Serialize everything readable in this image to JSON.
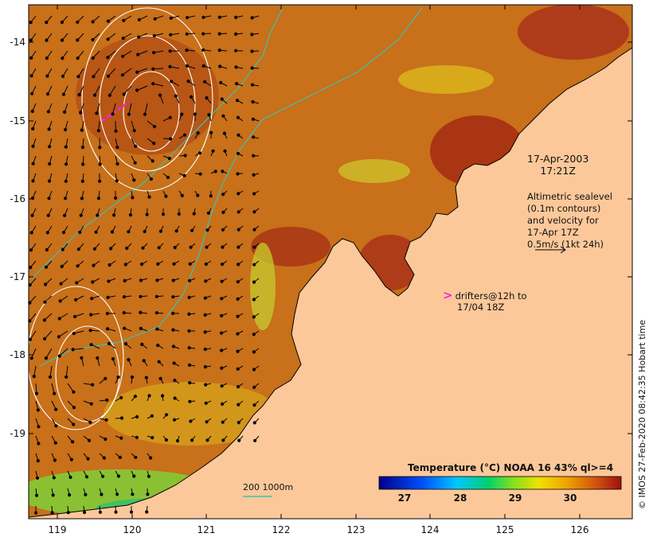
{
  "map": {
    "y_ticks": [
      "-14",
      "-15",
      "-16",
      "-17",
      "-18",
      "-19"
    ],
    "x_ticks": [
      "119",
      "120",
      "121",
      "122",
      "123",
      "124",
      "125",
      "126"
    ],
    "date_line1": "17-Apr-2003",
    "date_line2": "17:21Z",
    "altimetry_lines": [
      "Altimetric sealevel",
      "(0.1m contours)",
      "and velocity for",
      "17-Apr 17Z",
      "0.5m/s (1kt 24h)"
    ],
    "drifters_line1": "drifters@12h to",
    "drifters_line2": "17/04 18Z",
    "drifters_marker": ">",
    "colorbar_title": "Temperature (°C) NOAA 16 43% ql>=4",
    "colorbar_labels": [
      "27",
      "28",
      "29",
      "30"
    ],
    "scale_label": "200  1000m",
    "credit": "© IMOS 27-Feb-2020 08:42:35 Hobart time",
    "colors": {
      "land": "#fcc89a",
      "sea_warm": "#c86a10",
      "sea_hot": "#a52a12",
      "sea_cool": "#d9a81c",
      "isobath": "#40c0b0",
      "contour": "#ffffff",
      "drifter": "#ff22cc"
    }
  }
}
